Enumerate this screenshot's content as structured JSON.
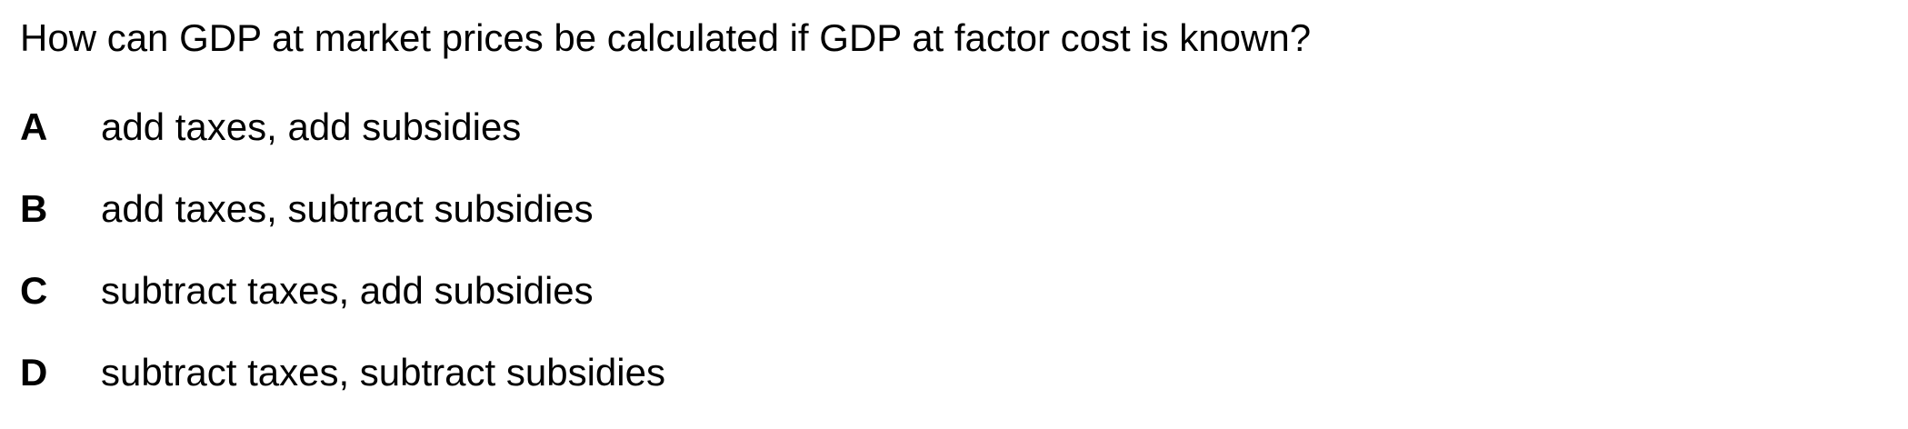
{
  "question": {
    "text": "How can GDP at market prices be calculated if GDP at factor cost is known?"
  },
  "options": [
    {
      "letter": "A",
      "text": "add taxes, add subsidies"
    },
    {
      "letter": "B",
      "text": "add taxes, subtract subsidies"
    },
    {
      "letter": "C",
      "text": "subtract taxes, add subsidies"
    },
    {
      "letter": "D",
      "text": "subtract taxes, subtract subsidies"
    }
  ]
}
